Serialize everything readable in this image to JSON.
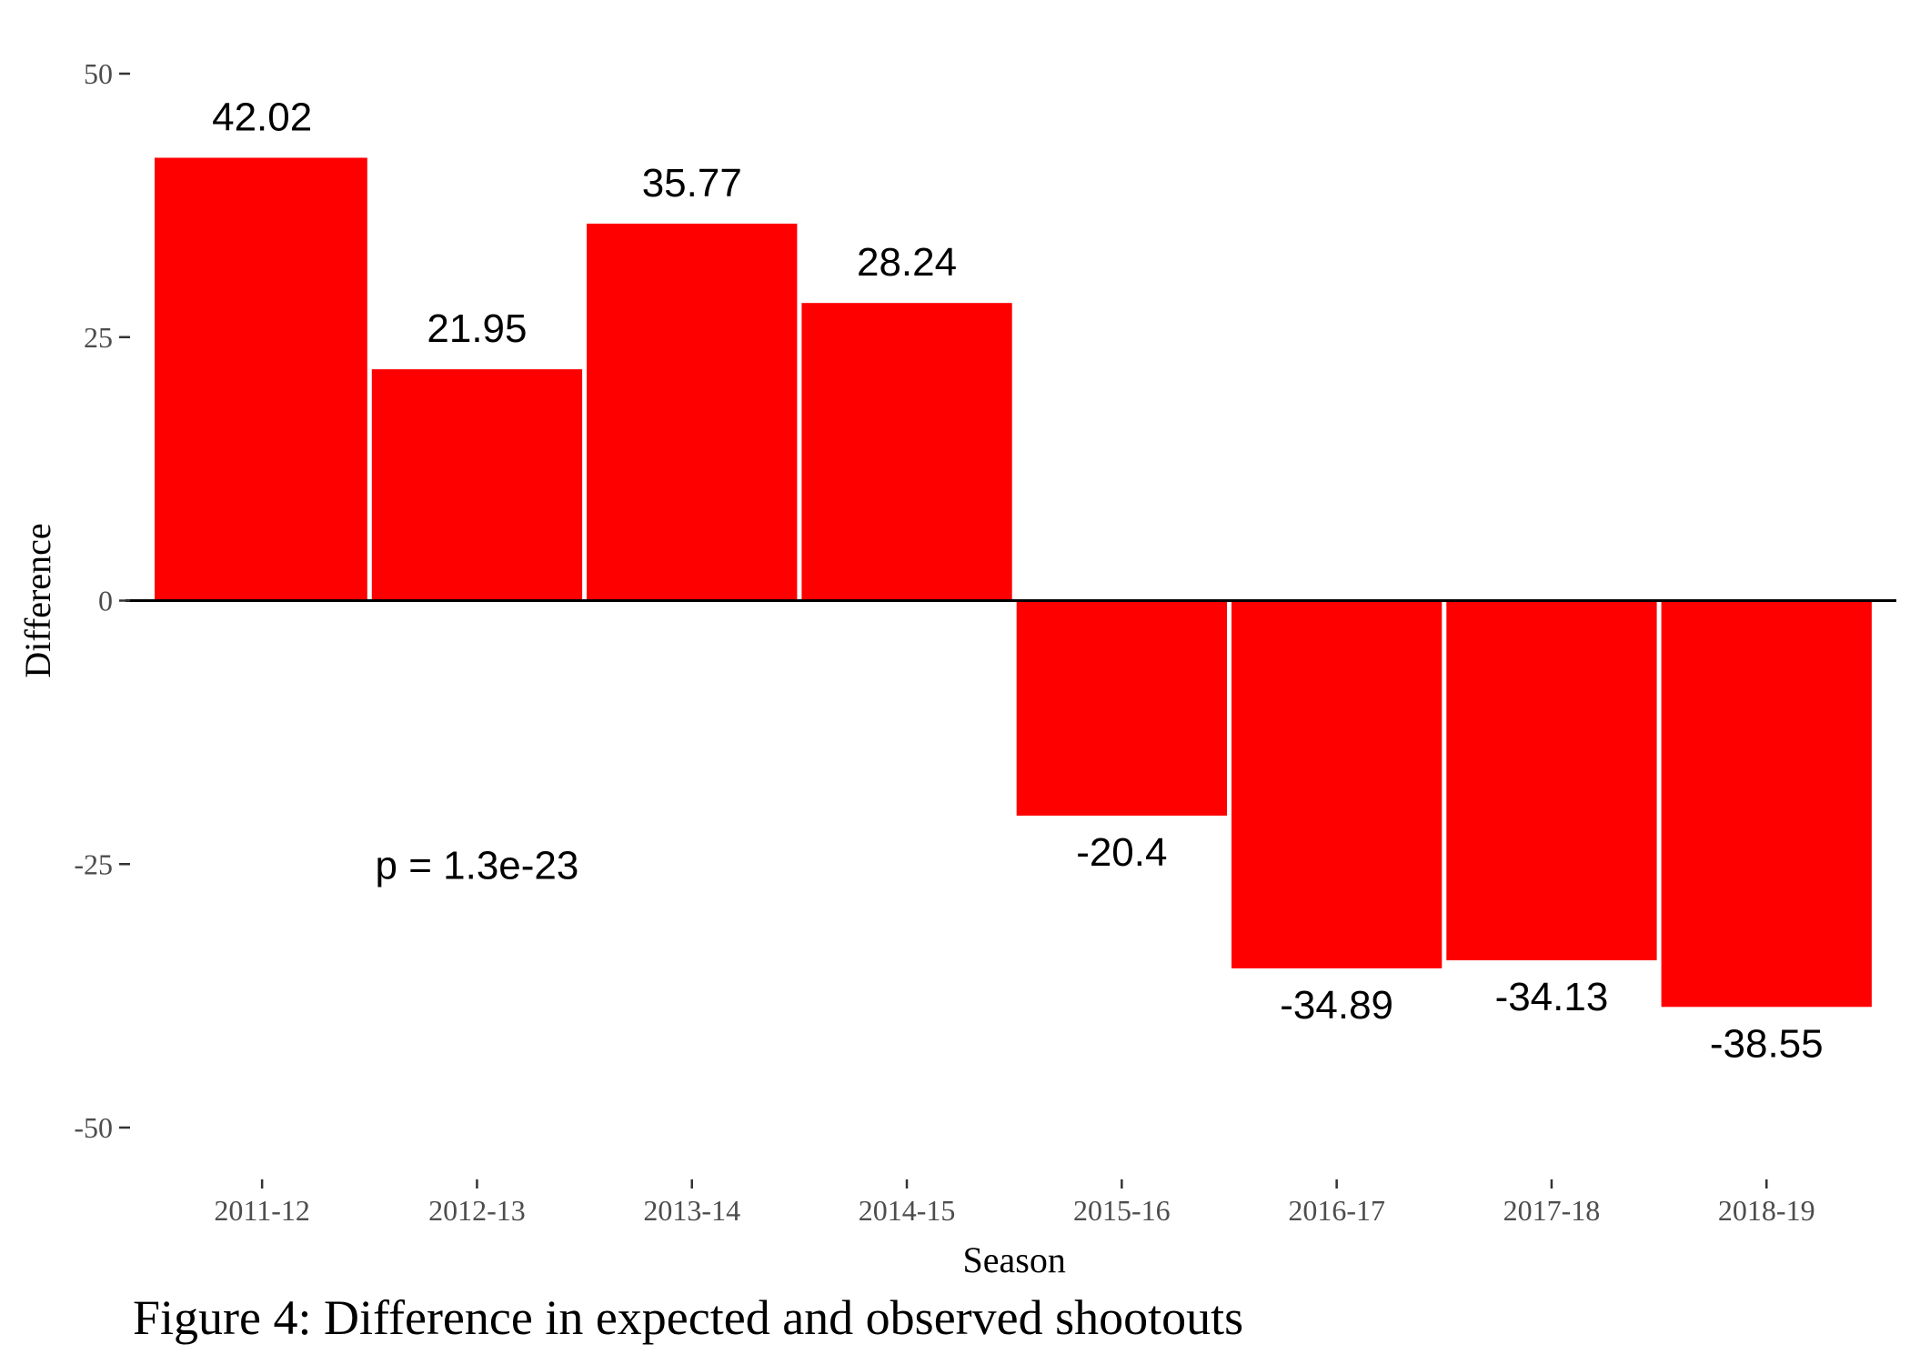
{
  "caption": "Figure 4: Difference in expected and observed shootouts",
  "chart_data": {
    "type": "bar",
    "categories": [
      "2011-12",
      "2012-13",
      "2013-14",
      "2014-15",
      "2015-16",
      "2016-17",
      "2017-18",
      "2018-19"
    ],
    "values": [
      42.02,
      21.95,
      35.77,
      28.24,
      -20.4,
      -34.89,
      -34.13,
      -38.55
    ],
    "data_labels": [
      "42.02",
      "21.95",
      "35.77",
      "28.24",
      "-20.4",
      "-34.89",
      "-34.13",
      "-38.55"
    ],
    "xlabel": "Season",
    "ylabel": "Difference",
    "ylim": [
      -50,
      50
    ],
    "yticks": [
      50,
      25,
      0,
      -25,
      -50
    ],
    "ytick_labels": [
      "50",
      "25",
      "0",
      "-25",
      "-50"
    ],
    "bar_color": "#fe0000",
    "grid": false,
    "annotation": "p = 1.3e-23",
    "annotation_position": {
      "category": "2012-13",
      "value": -25
    }
  }
}
